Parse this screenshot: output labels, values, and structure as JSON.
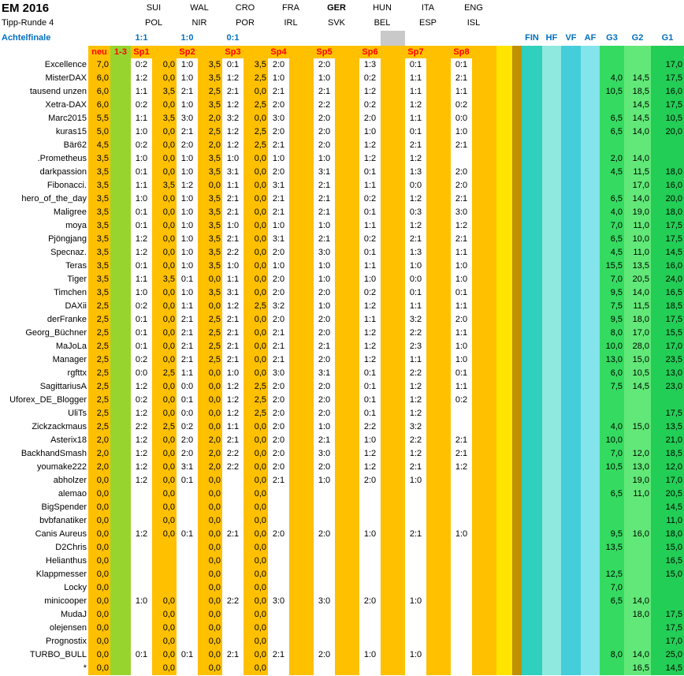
{
  "title": "EM 2016",
  "subtitle": "Tipp-Runde 4",
  "round_label": "Achtelfinale",
  "matches": [
    {
      "home": "SUI",
      "away": "POL",
      "result": "1:1"
    },
    {
      "home": "WAL",
      "away": "NIR",
      "result": "1:0"
    },
    {
      "home": "CRO",
      "away": "POR",
      "result": "0:1"
    },
    {
      "home": "FRA",
      "away": "IRL",
      "result": ""
    },
    {
      "home": "GER",
      "away": "SVK",
      "result": "",
      "bold": true
    },
    {
      "home": "HUN",
      "away": "BEL",
      "result": "",
      "gray": true
    },
    {
      "home": "ITA",
      "away": "ESP",
      "result": ""
    },
    {
      "home": "ENG",
      "away": "ISL",
      "result": ""
    }
  ],
  "col_labels": {
    "neu": "neu",
    "points_range": "1-3",
    "sp": [
      "Sp1",
      "Sp2",
      "Sp3",
      "Sp4",
      "Sp5",
      "Sp6",
      "Sp7",
      "Sp8"
    ]
  },
  "right_labels": [
    "FIN",
    "HF",
    "VF",
    "AF",
    "G3",
    "G2",
    "G1"
  ],
  "colors": {
    "orange": "#FFC000",
    "green": "#98D42E",
    "yellow": "#FFE400",
    "olive": "#BF9000",
    "fin": "#2FD0BD",
    "hf": "#90E9DE",
    "vf": "#45CEDA",
    "af": "#84E4EC",
    "g3": "#34DB60",
    "g2": "#62E878",
    "g1": "#22CE55",
    "gray": "#C9C9C9",
    "blue": "#0070C0",
    "red": "#FF0000"
  },
  "rows": [
    {
      "name": "Excellence",
      "neu": "7,0",
      "tips": [
        "0:2",
        "1:0",
        "0:1",
        "2:0",
        "2:0",
        "1:3",
        "0:1",
        "0:1"
      ],
      "pts": [
        "0,0",
        "3,5",
        "3,5"
      ],
      "g": [
        "",
        "",
        "17,0"
      ]
    },
    {
      "name": "MisterDAX",
      "neu": "6,0",
      "tips": [
        "1:2",
        "1:0",
        "1:2",
        "1:0",
        "1:0",
        "0:2",
        "1:1",
        "2:1"
      ],
      "pts": [
        "0,0",
        "3,5",
        "2,5"
      ],
      "g": [
        "4,0",
        "14,5",
        "17,5"
      ]
    },
    {
      "name": "tausend unzen",
      "neu": "6,0",
      "tips": [
        "1:1",
        "2:1",
        "2:1",
        "2:1",
        "2:1",
        "1:2",
        "1:1",
        "1:1"
      ],
      "pts": [
        "3,5",
        "2,5",
        "0,0"
      ],
      "g": [
        "10,5",
        "18,5",
        "16,0"
      ]
    },
    {
      "name": "Xetra-DAX",
      "neu": "6,0",
      "tips": [
        "0:2",
        "1:0",
        "1:2",
        "2:0",
        "2:2",
        "0:2",
        "1:2",
        "0:2"
      ],
      "pts": [
        "0,0",
        "3,5",
        "2,5"
      ],
      "g": [
        "",
        "14,5",
        "17,5"
      ]
    },
    {
      "name": "Marc2015",
      "neu": "5,5",
      "tips": [
        "1:1",
        "3:0",
        "3:2",
        "3:0",
        "2:0",
        "2:0",
        "1:1",
        "0:0"
      ],
      "pts": [
        "3,5",
        "2,0",
        "0,0"
      ],
      "g": [
        "6,5",
        "14,5",
        "10,5"
      ]
    },
    {
      "name": "kuras15",
      "neu": "5,0",
      "tips": [
        "1:0",
        "2:1",
        "1:2",
        "2:0",
        "2:0",
        "1:0",
        "0:1",
        "1:0"
      ],
      "pts": [
        "0,0",
        "2,5",
        "2,5"
      ],
      "g": [
        "6,5",
        "14,0",
        "20,0"
      ]
    },
    {
      "name": "Bär62",
      "neu": "4,5",
      "tips": [
        "0:2",
        "2:0",
        "1:2",
        "2:1",
        "2:0",
        "1:2",
        "2:1",
        "2:1"
      ],
      "pts": [
        "0,0",
        "2,0",
        "2,5"
      ],
      "g": [
        "",
        "",
        ""
      ]
    },
    {
      "name": ".Prometheus",
      "neu": "3,5",
      "tips": [
        "1:0",
        "1:0",
        "1:0",
        "1:0",
        "1:0",
        "1:2",
        "1:2",
        ""
      ],
      "pts": [
        "0,0",
        "3,5",
        "0,0"
      ],
      "g": [
        "2,0",
        "14,0",
        ""
      ]
    },
    {
      "name": "darkpassion",
      "neu": "3,5",
      "tips": [
        "0:1",
        "1:0",
        "3:1",
        "2:0",
        "3:1",
        "0:1",
        "1:3",
        "2:0"
      ],
      "pts": [
        "0,0",
        "3,5",
        "0,0"
      ],
      "g": [
        "4,5",
        "11,5",
        "18,0"
      ]
    },
    {
      "name": "Fibonacci.",
      "neu": "3,5",
      "tips": [
        "1:1",
        "1:2",
        "1:1",
        "3:1",
        "2:1",
        "1:1",
        "0:0",
        "2:0"
      ],
      "pts": [
        "3,5",
        "0,0",
        "0,0"
      ],
      "g": [
        "",
        "17,0",
        "16,0"
      ]
    },
    {
      "name": "hero_of_the_day",
      "neu": "3,5",
      "tips": [
        "1:0",
        "1:0",
        "2:1",
        "2:1",
        "2:1",
        "0:2",
        "1:2",
        "2:1"
      ],
      "pts": [
        "0,0",
        "3,5",
        "0,0"
      ],
      "g": [
        "6,5",
        "14,0",
        "20,0"
      ]
    },
    {
      "name": "Maligree",
      "neu": "3,5",
      "tips": [
        "0:1",
        "1:0",
        "2:1",
        "2:1",
        "2:1",
        "0:1",
        "0:3",
        "3:0"
      ],
      "pts": [
        "0,0",
        "3,5",
        "0,0"
      ],
      "g": [
        "4,0",
        "19,0",
        "18,0"
      ]
    },
    {
      "name": "moya",
      "neu": "3,5",
      "tips": [
        "0:1",
        "1:0",
        "1:0",
        "1:0",
        "1:0",
        "1:1",
        "1:2",
        "1:2"
      ],
      "pts": [
        "0,0",
        "3,5",
        "0,0"
      ],
      "g": [
        "7,0",
        "11,0",
        "17,5"
      ]
    },
    {
      "name": "Pjöngjang",
      "neu": "3,5",
      "tips": [
        "1:2",
        "1:0",
        "2:1",
        "3:1",
        "2:1",
        "0:2",
        "2:1",
        "2:1"
      ],
      "pts": [
        "0,0",
        "3,5",
        "0,0"
      ],
      "g": [
        "6,5",
        "10,0",
        "17,5"
      ]
    },
    {
      "name": "Specnaz.",
      "neu": "3,5",
      "tips": [
        "1:2",
        "1:0",
        "2:2",
        "2:0",
        "3:0",
        "0:1",
        "1:3",
        "1:1"
      ],
      "pts": [
        "0,0",
        "3,5",
        "0,0"
      ],
      "g": [
        "4,5",
        "11,0",
        "14,5"
      ]
    },
    {
      "name": "Teras",
      "neu": "3,5",
      "tips": [
        "0:1",
        "1:0",
        "1:0",
        "1:0",
        "1:0",
        "1:1",
        "1:0",
        "1:0"
      ],
      "pts": [
        "0,0",
        "3,5",
        "0,0"
      ],
      "g": [
        "15,5",
        "13,5",
        "16,0"
      ]
    },
    {
      "name": "Tiger",
      "neu": "3,5",
      "tips": [
        "1:1",
        "0:1",
        "1:1",
        "2:0",
        "1:0",
        "1:0",
        "0:0",
        "1:0"
      ],
      "pts": [
        "3,5",
        "0,0",
        "0,0"
      ],
      "g": [
        "7,0",
        "20,5",
        "24,0"
      ]
    },
    {
      "name": "Timchen",
      "neu": "3,5",
      "tips": [
        "1:0",
        "1:0",
        "3:1",
        "2:0",
        "2:0",
        "0:2",
        "0:1",
        "0:1"
      ],
      "pts": [
        "0,0",
        "3,5",
        "0,0"
      ],
      "g": [
        "9,5",
        "14,0",
        "16,5"
      ]
    },
    {
      "name": "DAXii",
      "neu": "2,5",
      "tips": [
        "0:2",
        "1:1",
        "1:2",
        "3:2",
        "1:0",
        "1:2",
        "1:1",
        "1:1"
      ],
      "pts": [
        "0,0",
        "0,0",
        "2,5"
      ],
      "g": [
        "7,5",
        "11,5",
        "18,5"
      ]
    },
    {
      "name": "derFranke",
      "neu": "2,5",
      "tips": [
        "0:1",
        "2:1",
        "2:1",
        "2:0",
        "2:0",
        "1:1",
        "3:2",
        "2:0"
      ],
      "pts": [
        "0,0",
        "2,5",
        "0,0"
      ],
      "g": [
        "9,5",
        "18,0",
        "17,5"
      ]
    },
    {
      "name": "Georg_Büchner",
      "neu": "2,5",
      "tips": [
        "0:1",
        "2:1",
        "2:1",
        "2:1",
        "2:0",
        "1:2",
        "2:2",
        "1:1"
      ],
      "pts": [
        "0,0",
        "2,5",
        "0,0"
      ],
      "g": [
        "8,0",
        "17,0",
        "15,5"
      ]
    },
    {
      "name": "MaJoLa",
      "neu": "2,5",
      "tips": [
        "0:1",
        "2:1",
        "2:1",
        "2:1",
        "2:1",
        "1:2",
        "2:3",
        "1:0"
      ],
      "pts": [
        "0,0",
        "2,5",
        "0,0"
      ],
      "g": [
        "10,0",
        "28,0",
        "17,0"
      ]
    },
    {
      "name": "Manager",
      "neu": "2,5",
      "tips": [
        "0:2",
        "2:1",
        "2:1",
        "2:1",
        "2:0",
        "1:2",
        "1:1",
        "1:0"
      ],
      "pts": [
        "0,0",
        "2,5",
        "0,0"
      ],
      "g": [
        "13,0",
        "15,0",
        "23,5"
      ]
    },
    {
      "name": "rgfttx",
      "neu": "2,5",
      "tips": [
        "0:0",
        "1:1",
        "1:0",
        "3:0",
        "3:1",
        "0:1",
        "2:2",
        "0:1"
      ],
      "pts": [
        "2,5",
        "0,0",
        "0,0"
      ],
      "g": [
        "6,0",
        "10,5",
        "13,0"
      ]
    },
    {
      "name": "SagittariusA",
      "neu": "2,5",
      "tips": [
        "1:2",
        "0:0",
        "1:2",
        "2:0",
        "2:0",
        "0:1",
        "1:2",
        "1:1"
      ],
      "pts": [
        "0,0",
        "0,0",
        "2,5"
      ],
      "g": [
        "7,5",
        "14,5",
        "23,0"
      ]
    },
    {
      "name": "Uforex_DE_Blogger",
      "neu": "2,5",
      "tips": [
        "0:2",
        "0:1",
        "1:2",
        "2:0",
        "2:0",
        "0:1",
        "1:2",
        "0:2"
      ],
      "pts": [
        "0,0",
        "0,0",
        "2,5"
      ],
      "g": [
        "",
        "",
        ""
      ]
    },
    {
      "name": "UliTs",
      "neu": "2,5",
      "tips": [
        "1:2",
        "0:0",
        "1:2",
        "2:0",
        "2:0",
        "0:1",
        "1:2",
        ""
      ],
      "pts": [
        "0,0",
        "0,0",
        "2,5"
      ],
      "g": [
        "",
        "",
        "17,5"
      ]
    },
    {
      "name": "Zickzackmaus",
      "neu": "2,5",
      "tips": [
        "2:2",
        "0:2",
        "1:1",
        "2:0",
        "1:0",
        "2:2",
        "3:2",
        ""
      ],
      "pts": [
        "2,5",
        "0,0",
        "0,0"
      ],
      "g": [
        "4,0",
        "15,0",
        "13,5"
      ]
    },
    {
      "name": "Asterix18",
      "neu": "2,0",
      "tips": [
        "1:2",
        "2:0",
        "2:1",
        "2:0",
        "2:1",
        "1:0",
        "2:2",
        "2:1"
      ],
      "pts": [
        "0,0",
        "2,0",
        "0,0"
      ],
      "g": [
        "10,0",
        "",
        "21,0"
      ]
    },
    {
      "name": "BackhandSmash",
      "neu": "2,0",
      "tips": [
        "1:2",
        "2:0",
        "2:2",
        "2:0",
        "3:0",
        "1:2",
        "1:2",
        "2:1"
      ],
      "pts": [
        "0,0",
        "2,0",
        "0,0"
      ],
      "g": [
        "7,0",
        "12,0",
        "18,5"
      ]
    },
    {
      "name": "youmake222",
      "neu": "2,0",
      "tips": [
        "1:2",
        "3:1",
        "2:2",
        "2:0",
        "2:0",
        "1:2",
        "2:1",
        "1:2"
      ],
      "pts": [
        "0,0",
        "2,0",
        "0,0"
      ],
      "g": [
        "10,5",
        "13,0",
        "12,0"
      ]
    },
    {
      "name": "abholzer",
      "neu": "0,0",
      "tips": [
        "1:2",
        "0:1",
        "",
        "2:1",
        "1:0",
        "2:0",
        "1:0",
        ""
      ],
      "pts": [
        "0,0",
        "0,0",
        "0,0"
      ],
      "g": [
        "",
        "19,0",
        "17,0"
      ]
    },
    {
      "name": "alemao",
      "neu": "0,0",
      "tips": [
        "",
        "",
        "",
        "",
        "",
        "",
        "",
        ""
      ],
      "pts": [
        "0,0",
        "0,0",
        "0,0"
      ],
      "g": [
        "6,5",
        "11,0",
        "20,5"
      ]
    },
    {
      "name": "BigSpender",
      "neu": "0,0",
      "tips": [
        "",
        "",
        "",
        "",
        "",
        "",
        "",
        ""
      ],
      "pts": [
        "0,0",
        "0,0",
        "0,0"
      ],
      "g": [
        "",
        "",
        "14,5"
      ]
    },
    {
      "name": "bvbfanatiker",
      "neu": "0,0",
      "tips": [
        "",
        "",
        "",
        "",
        "",
        "",
        "",
        ""
      ],
      "pts": [
        "0,0",
        "0,0",
        "0,0"
      ],
      "g": [
        "",
        "",
        "11,0"
      ]
    },
    {
      "name": "Canis Aureus",
      "neu": "0,0",
      "tips": [
        "1:2",
        "0:1",
        "2:1",
        "2:0",
        "2:0",
        "1:0",
        "2:1",
        "1:0"
      ],
      "pts": [
        "0,0",
        "0,0",
        "0,0"
      ],
      "g": [
        "9,5",
        "16,0",
        "18,0"
      ]
    },
    {
      "name": "D2Chris",
      "neu": "0,0",
      "tips": [
        "",
        "",
        "",
        "",
        "",
        "",
        "",
        ""
      ],
      "pts": [
        "",
        "0,0",
        "0,0"
      ],
      "g": [
        "13,5",
        "",
        "15,0"
      ]
    },
    {
      "name": "Helianthus",
      "neu": "0,0",
      "tips": [
        "",
        "",
        "",
        "",
        "",
        "",
        "",
        ""
      ],
      "pts": [
        "",
        "0,0",
        "0,0"
      ],
      "g": [
        "",
        "",
        "16,5"
      ]
    },
    {
      "name": "Klappmesser",
      "neu": "0,0",
      "tips": [
        "",
        "",
        "",
        "",
        "",
        "",
        "",
        ""
      ],
      "pts": [
        "",
        "0,0",
        "0,0"
      ],
      "g": [
        "12,5",
        "",
        "15,0"
      ]
    },
    {
      "name": "Locky",
      "neu": "0,0",
      "tips": [
        "",
        "",
        "",
        "",
        "",
        "",
        "",
        ""
      ],
      "pts": [
        "",
        "0,0",
        "0,0"
      ],
      "g": [
        "7,0",
        "",
        ""
      ]
    },
    {
      "name": "minicooper",
      "neu": "0,0",
      "tips": [
        "1:0",
        "",
        "2:2",
        "3:0",
        "3:0",
        "2:0",
        "1:0",
        ""
      ],
      "pts": [
        "0,0",
        "0,0",
        "0,0"
      ],
      "g": [
        "6,5",
        "14,0",
        ""
      ]
    },
    {
      "name": "MudaJ",
      "neu": "0,0",
      "tips": [
        "",
        "",
        "",
        "",
        "",
        "",
        "",
        ""
      ],
      "pts": [
        "0,0",
        "0,0",
        "0,0"
      ],
      "g": [
        "",
        "18,0",
        "17,5"
      ]
    },
    {
      "name": "olejensen",
      "neu": "0,0",
      "tips": [
        "",
        "",
        "",
        "",
        "",
        "",
        "",
        ""
      ],
      "pts": [
        "0,0",
        "0,0",
        "0,0"
      ],
      "g": [
        "",
        "",
        "17,5"
      ]
    },
    {
      "name": "Prognostix",
      "neu": "0,0",
      "tips": [
        "",
        "",
        "",
        "",
        "",
        "",
        "",
        ""
      ],
      "pts": [
        "0,0",
        "0,0",
        "0,0"
      ],
      "g": [
        "",
        "",
        "17,0"
      ]
    },
    {
      "name": "TURBO_BULL",
      "neu": "0,0",
      "tips": [
        "0:1",
        "0:1",
        "2:1",
        "2:1",
        "2:0",
        "1:0",
        "1:0",
        ""
      ],
      "pts": [
        "0,0",
        "0,0",
        "0,0"
      ],
      "g": [
        "8,0",
        "14,0",
        "25,0"
      ]
    },
    {
      "name": "*",
      "neu": "0,0",
      "tips": [
        "",
        "",
        "",
        "",
        "",
        "",
        "",
        ""
      ],
      "pts": [
        "0,0",
        "0,0",
        "0,0"
      ],
      "g": [
        "",
        "16,5",
        "14,5"
      ]
    }
  ]
}
